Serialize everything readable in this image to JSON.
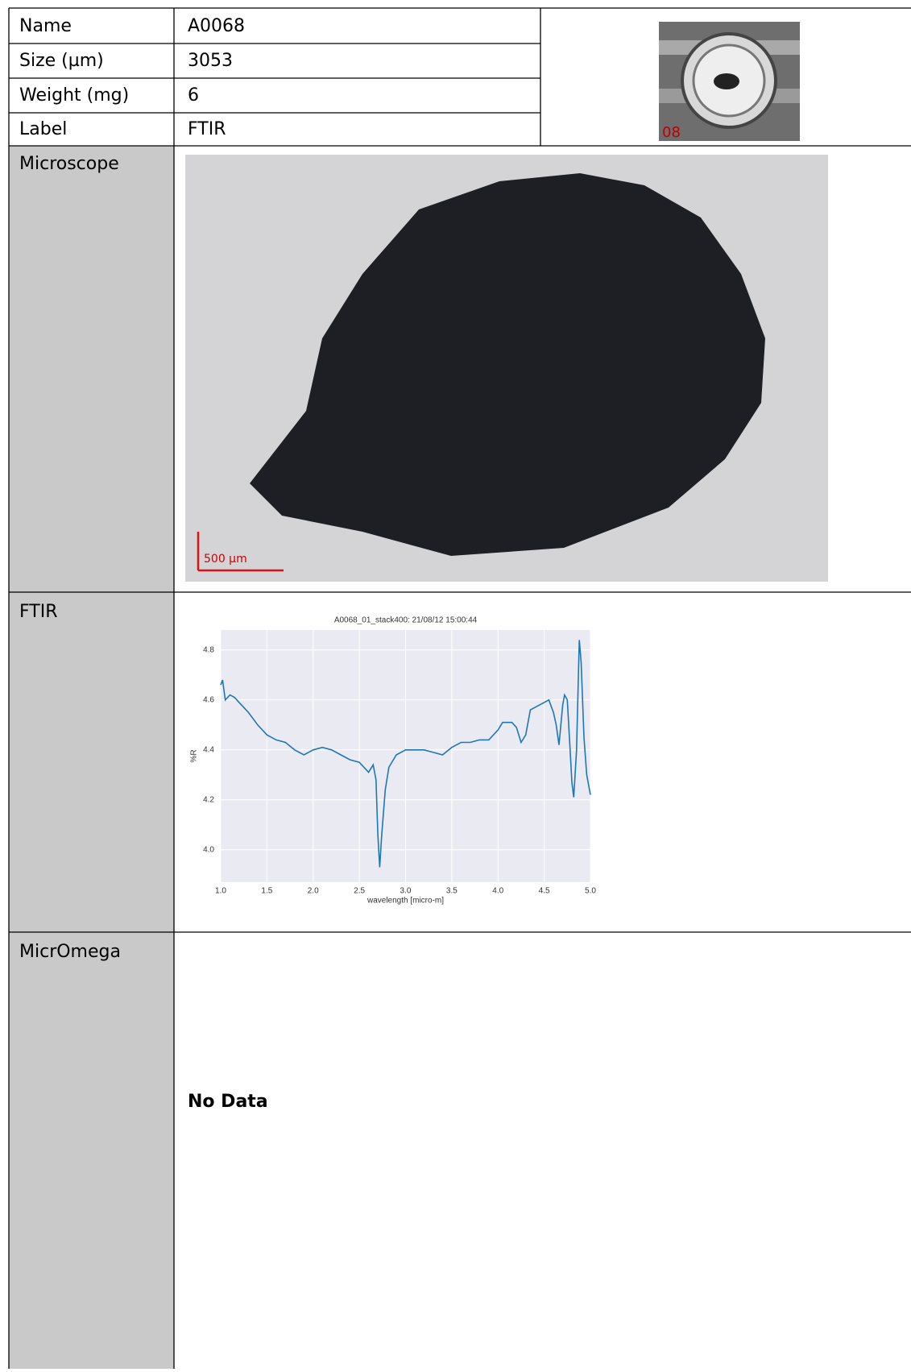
{
  "table": {
    "rows": [
      [
        "Name",
        "A0068"
      ],
      [
        "Size (µm)",
        "3053"
      ],
      [
        "Weight (mg)",
        "6"
      ],
      [
        "Label",
        "FTIR"
      ]
    ]
  },
  "thumbnail": {
    "label": "08"
  },
  "microscope": {
    "label": "Microscope",
    "scale_label": "500 μm"
  },
  "ftir": {
    "label": "FTIR"
  },
  "micromega": {
    "label": "MicrOmega",
    "message": "No Data"
  },
  "chart_data": {
    "type": "line",
    "title": "A0068_01_stack400:  21/08/12 15:00:44",
    "x_label": "wavelength [micro-m]",
    "y_label": "%R",
    "x": [
      1.0,
      1.02,
      1.05,
      1.1,
      1.15,
      1.2,
      1.3,
      1.4,
      1.5,
      1.6,
      1.7,
      1.8,
      1.9,
      2.0,
      2.1,
      2.2,
      2.3,
      2.4,
      2.5,
      2.55,
      2.6,
      2.65,
      2.68,
      2.7,
      2.72,
      2.74,
      2.78,
      2.82,
      2.9,
      3.0,
      3.1,
      3.2,
      3.3,
      3.4,
      3.5,
      3.6,
      3.7,
      3.8,
      3.9,
      4.0,
      4.05,
      4.1,
      4.15,
      4.2,
      4.25,
      4.3,
      4.35,
      4.4,
      4.5,
      4.55,
      4.6,
      4.63,
      4.66,
      4.7,
      4.72,
      4.75,
      4.78,
      4.8,
      4.82,
      4.85,
      4.87,
      4.88,
      4.9,
      4.93,
      4.96,
      5.0
    ],
    "series": [
      {
        "name": "%R",
        "color": "#1f77b4",
        "values": [
          4.66,
          4.68,
          4.6,
          4.62,
          4.61,
          4.59,
          4.55,
          4.5,
          4.46,
          4.44,
          4.43,
          4.4,
          4.38,
          4.4,
          4.41,
          4.4,
          4.38,
          4.36,
          4.35,
          4.33,
          4.31,
          4.34,
          4.28,
          4.06,
          3.93,
          4.05,
          4.24,
          4.33,
          4.38,
          4.4,
          4.4,
          4.4,
          4.39,
          4.38,
          4.41,
          4.43,
          4.43,
          4.44,
          4.44,
          4.48,
          4.51,
          4.51,
          4.51,
          4.49,
          4.43,
          4.46,
          4.56,
          4.57,
          4.59,
          4.6,
          4.55,
          4.5,
          4.42,
          4.58,
          4.62,
          4.6,
          4.4,
          4.27,
          4.21,
          4.4,
          4.7,
          4.84,
          4.75,
          4.45,
          4.3,
          4.22
        ]
      }
    ],
    "xlim": [
      1.0,
      5.0
    ],
    "ylim": [
      3.87,
      4.88
    ],
    "xticks": [
      {
        "value": 1,
        "label": "1.0"
      },
      1.5,
      {
        "value": 2,
        "label": "2.0"
      },
      2.5,
      {
        "value": 3,
        "label": "3.0"
      },
      3.5,
      {
        "value": 4,
        "label": "4.0"
      },
      4.5,
      {
        "value": 5,
        "label": "5.0"
      }
    ],
    "yticks": [
      {
        "value": 4,
        "label": "4.0"
      },
      4.2,
      4.4,
      4.6,
      4.8
    ],
    "grid": true,
    "background": "#eaeaf2"
  }
}
